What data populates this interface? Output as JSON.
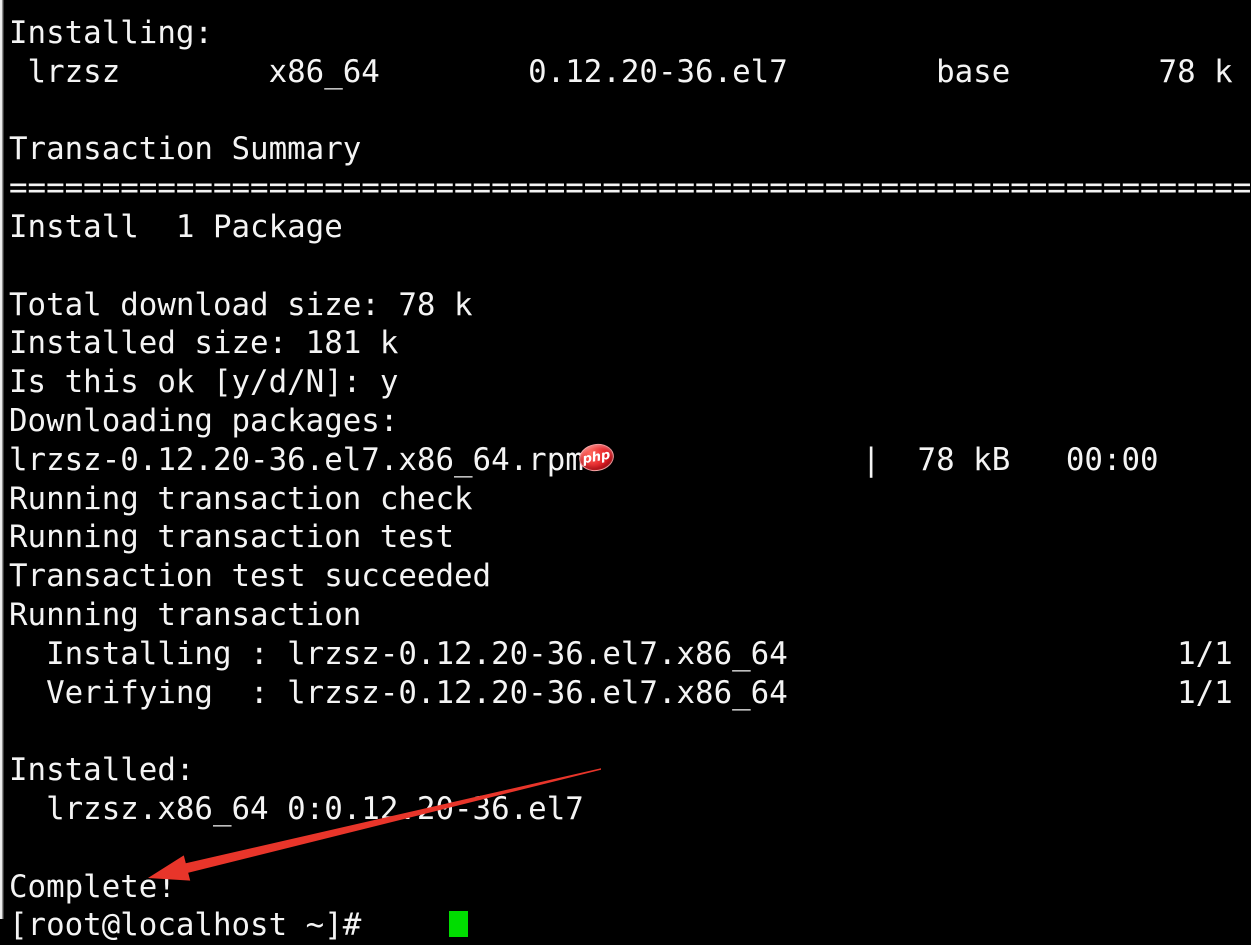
{
  "terminal": {
    "bg": "#000000",
    "fg": "#f4f4f4",
    "lines": [
      "Installing:",
      " lrzsz        x86_64        0.12.20-36.el7        base        78 k",
      "",
      "Transaction Summary",
      "====================================================================",
      "Install  1 Package",
      "",
      "Total download size: 78 k",
      "Installed size: 181 k",
      "Is this ok [y/d/N]: y",
      "Downloading packages:",
      "lrzsz-0.12.20-36.el7.x86_64.rpm               |  78 kB   00:00",
      "Running transaction check",
      "Running transaction test",
      "Transaction test succeeded",
      "Running transaction",
      "  Installing : lrzsz-0.12.20-36.el7.x86_64                     1/1",
      "  Verifying  : lrzsz-0.12.20-36.el7.x86_64                     1/1",
      "",
      "Installed:",
      "  lrzsz.x86_64 0:0.12.20-36.el7",
      "",
      "Complete!",
      "[root@localhost ~]# "
    ],
    "cursor_color": "#00dd00"
  },
  "watermark_badge": {
    "label": "php",
    "bg": "#e31b23",
    "fg": "#ffffff"
  },
  "annotation": {
    "arrow_color": "#e8352a"
  }
}
